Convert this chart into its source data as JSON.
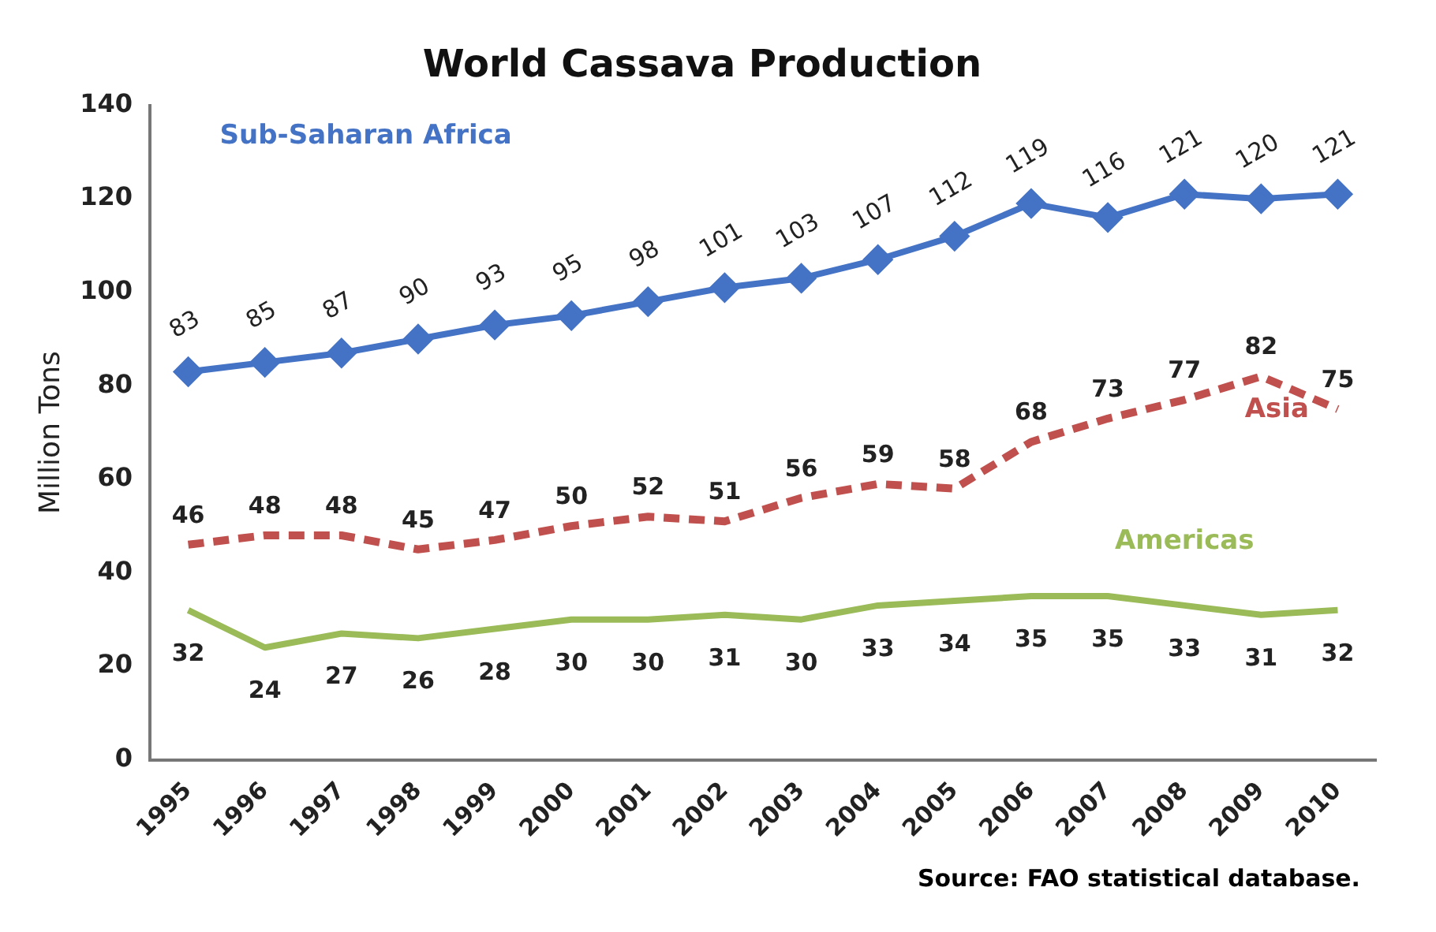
{
  "chart_data": {
    "type": "line",
    "title": "World Cassava Production",
    "ylabel": "Million Tons",
    "categories": [
      "1995",
      "1996",
      "1997",
      "1998",
      "1999",
      "2000",
      "2001",
      "2002",
      "2003",
      "2004",
      "2005",
      "2006",
      "2007",
      "2008",
      "2009",
      "2010"
    ],
    "series": [
      {
        "name": "Sub-Saharan Africa",
        "color": "#4472c4",
        "marker": "diamond",
        "line_style": "solid",
        "values": [
          83,
          85,
          87,
          90,
          93,
          95,
          98,
          101,
          103,
          107,
          112,
          119,
          116,
          121,
          120,
          121
        ]
      },
      {
        "name": "Asia",
        "color": "#c0504d",
        "marker": "none",
        "line_style": "dashed",
        "values": [
          46,
          48,
          48,
          45,
          47,
          50,
          52,
          51,
          56,
          59,
          58,
          68,
          73,
          77,
          82,
          75
        ]
      },
      {
        "name": "Americas",
        "color": "#9bbb59",
        "marker": "none",
        "line_style": "solid",
        "values": [
          32,
          24,
          27,
          26,
          28,
          30,
          30,
          31,
          30,
          33,
          34,
          35,
          35,
          33,
          31,
          32
        ]
      }
    ],
    "ylim": [
      0,
      140
    ],
    "yticks": [
      0,
      20,
      40,
      60,
      80,
      100,
      120,
      140
    ],
    "grid": false,
    "legend": false,
    "data_labels": true,
    "annotations": [
      "Source: FAO statistical database."
    ]
  }
}
